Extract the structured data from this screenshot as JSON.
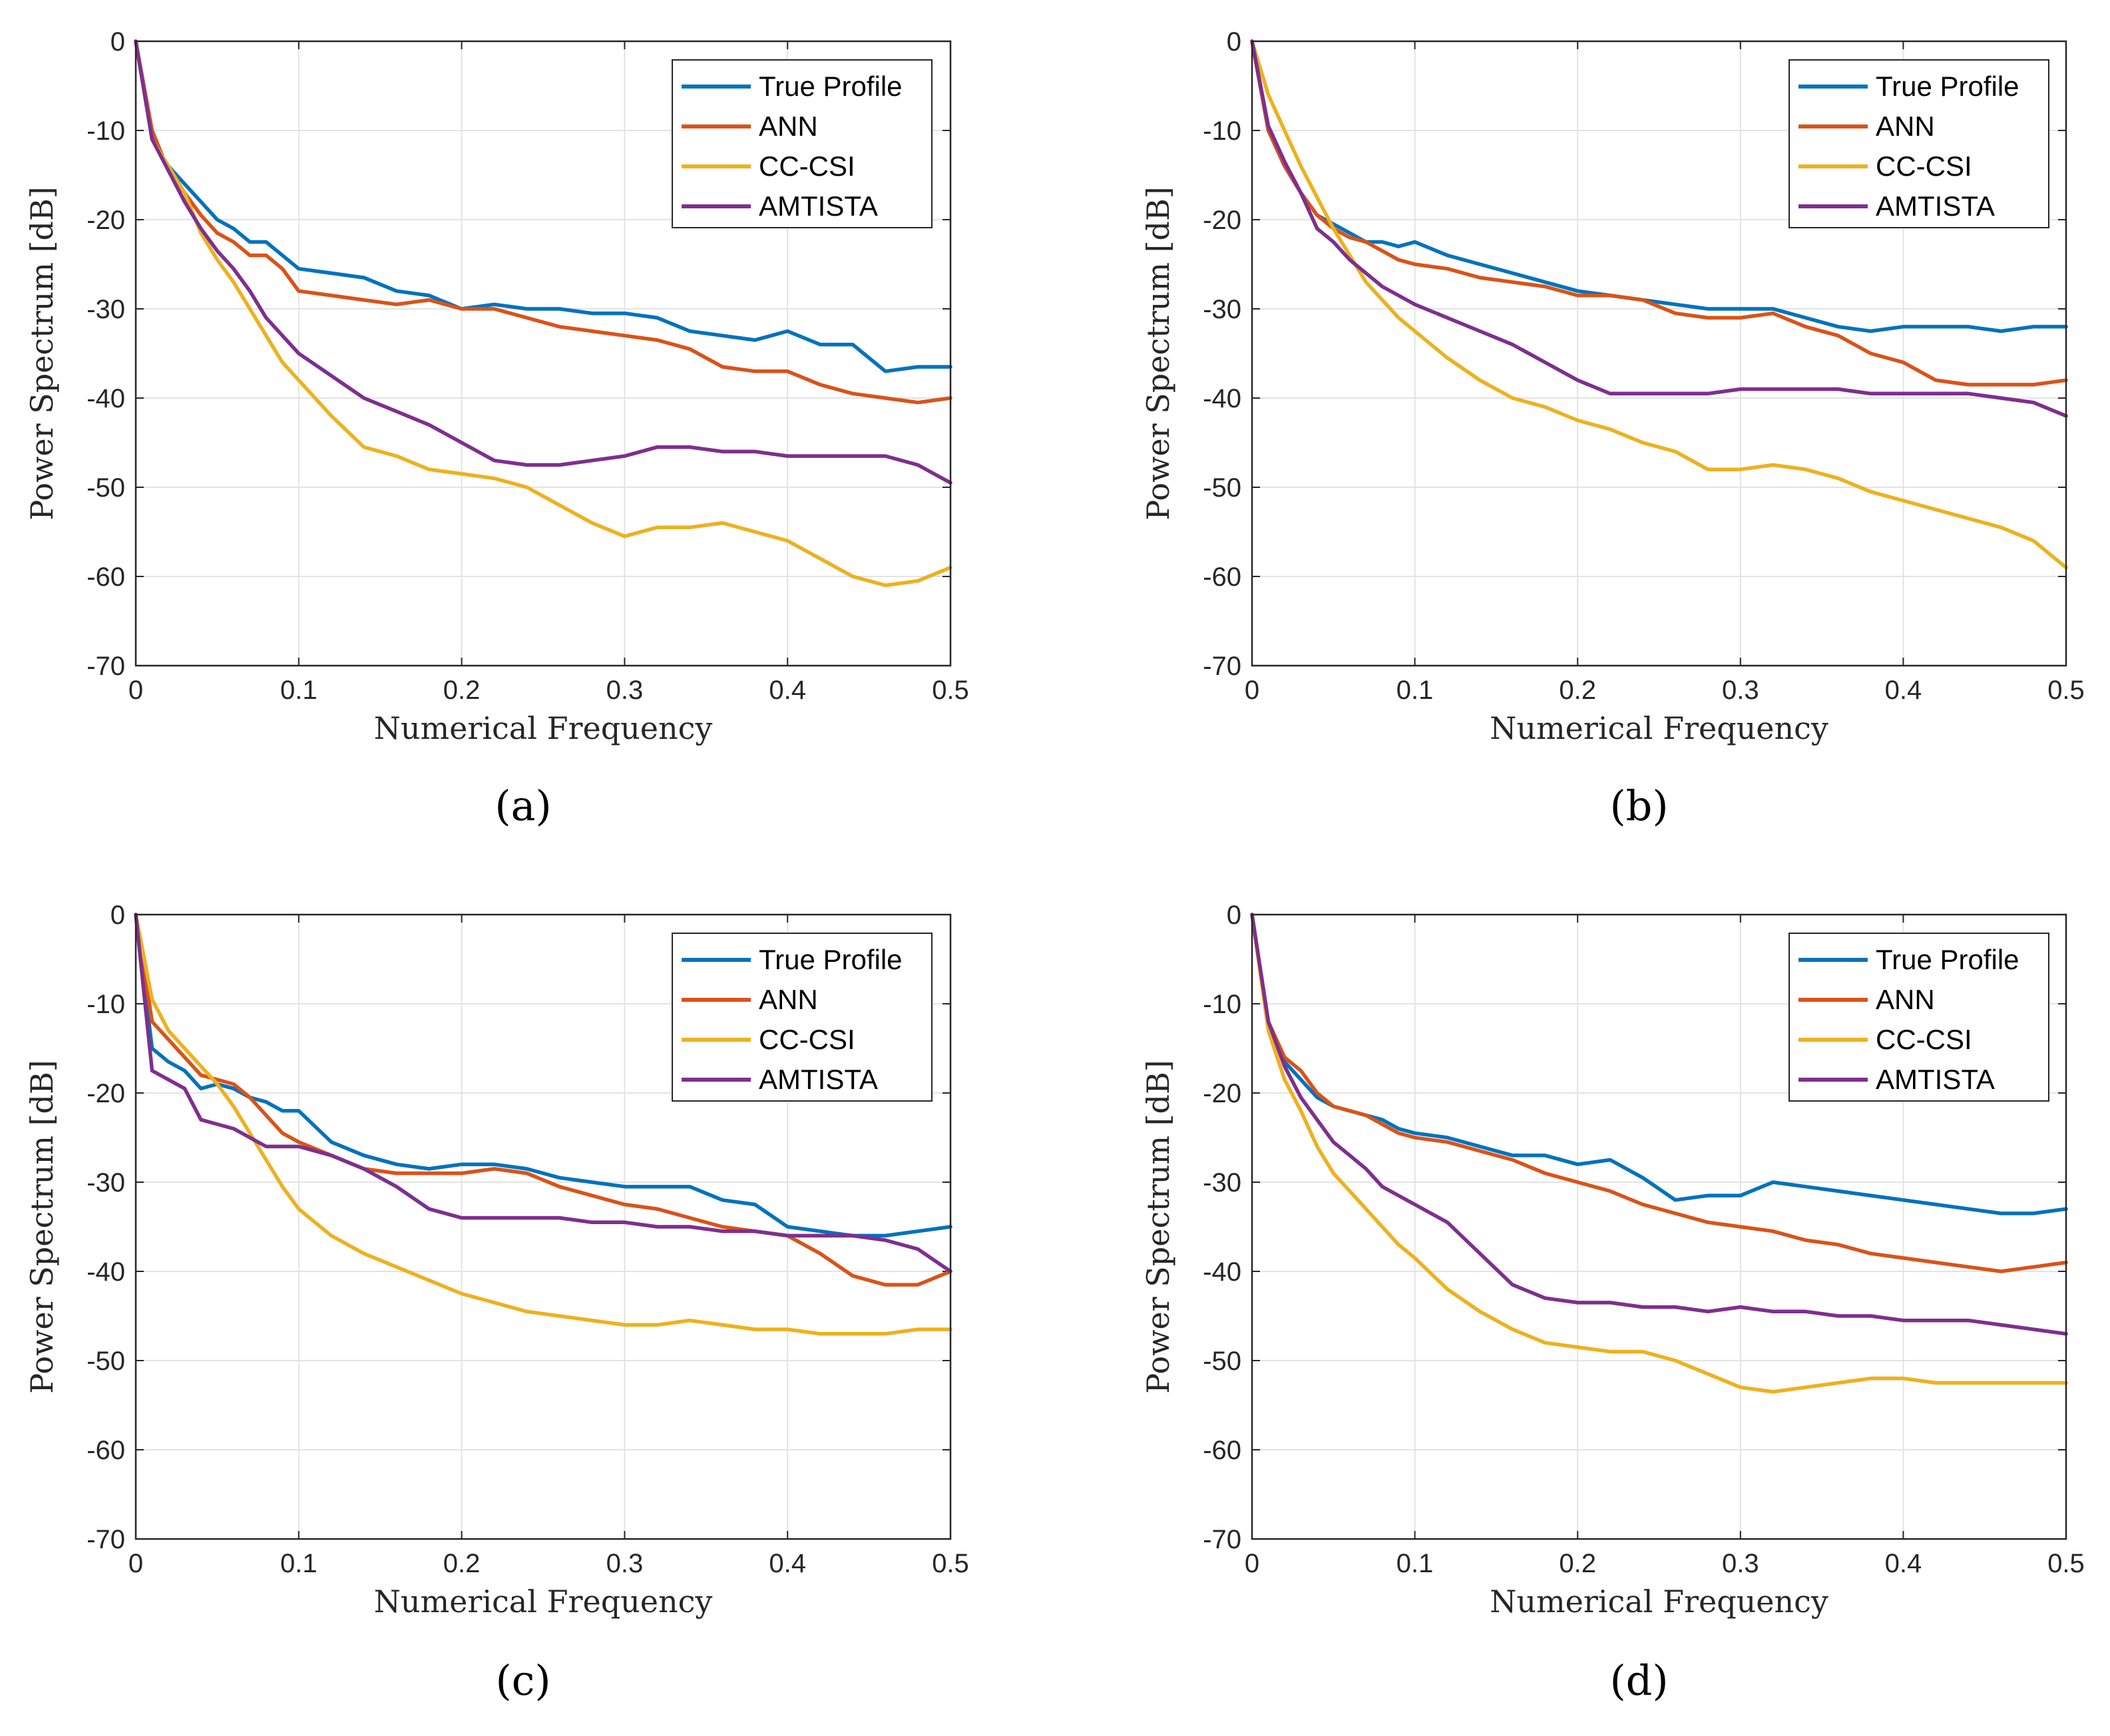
{
  "series_colors": {
    "True Profile": "#0072BD",
    "ANN": "#D95319",
    "CC-CSI": "#EDB120",
    "AMTISTA": "#7E2F8E"
  },
  "chart_data": [
    {
      "type": "line",
      "panel_label": "(a)",
      "xlabel": "Numerical Frequency",
      "ylabel": "Power Spectrum [dB]",
      "xlim": [
        0,
        0.5
      ],
      "ylim": [
        -70,
        0
      ],
      "xticks": [
        "0",
        "0.1",
        "0.2",
        "0.3",
        "0.4",
        "0.5"
      ],
      "yticks": [
        "0",
        "-10",
        "-20",
        "-30",
        "-40",
        "-50",
        "-60",
        "-70"
      ],
      "grid": true,
      "legend_position": "top-right",
      "legend": [
        "True Profile",
        "ANN",
        "CC-CSI",
        "AMTISTA"
      ],
      "x": [
        0,
        0.01,
        0.02,
        0.03,
        0.04,
        0.05,
        0.06,
        0.07,
        0.08,
        0.09,
        0.1,
        0.12,
        0.14,
        0.16,
        0.18,
        0.2,
        0.22,
        0.24,
        0.26,
        0.28,
        0.3,
        0.32,
        0.34,
        0.36,
        0.38,
        0.4,
        0.42,
        0.44,
        0.46,
        0.48,
        0.5
      ],
      "series": [
        {
          "name": "True Profile",
          "values": [
            0,
            -11,
            -14,
            -16,
            -18,
            -20,
            -21,
            -22.5,
            -22.5,
            -24,
            -25.5,
            -26,
            -26.5,
            -28,
            -28.5,
            -30,
            -29.5,
            -30,
            -30,
            -30.5,
            -30.5,
            -31,
            -32.5,
            -33,
            -33.5,
            -32.5,
            -34,
            -34,
            -37,
            -36.5,
            -36.5
          ]
        },
        {
          "name": "ANN",
          "values": [
            0,
            -10,
            -14.5,
            -17,
            -19.5,
            -21.5,
            -22.5,
            -24,
            -24,
            -25.5,
            -28,
            -28.5,
            -29,
            -29.5,
            -29,
            -30,
            -30,
            -31,
            -32,
            -32.5,
            -33,
            -33.5,
            -34.5,
            -36.5,
            -37,
            -37,
            -38.5,
            -39.5,
            -40,
            -40.5,
            -40
          ]
        },
        {
          "name": "CC-CSI",
          "values": [
            0,
            -11,
            -14,
            -17,
            -21.5,
            -24.5,
            -27,
            -30,
            -33,
            -36,
            -38,
            -42,
            -45.5,
            -46.5,
            -48,
            -48.5,
            -49,
            -50,
            -52,
            -54,
            -55.5,
            -54.5,
            -54.5,
            -54,
            -55,
            -56,
            -58,
            -60,
            -61,
            -60.5,
            -59
          ]
        },
        {
          "name": "AMTISTA",
          "values": [
            0,
            -11,
            -14.5,
            -18,
            -21,
            -23.5,
            -25.5,
            -28,
            -31,
            -33,
            -35,
            -37.5,
            -40,
            -41.5,
            -43,
            -45,
            -47,
            -47.5,
            -47.5,
            -47,
            -46.5,
            -45.5,
            -45.5,
            -46,
            -46,
            -46.5,
            -46.5,
            -46.5,
            -46.5,
            -47.5,
            -49.5
          ]
        }
      ]
    },
    {
      "type": "line",
      "panel_label": "(b)",
      "xlabel": "Numerical Frequency",
      "ylabel": "Power Spectrum [dB]",
      "xlim": [
        0,
        0.5
      ],
      "ylim": [
        -70,
        0
      ],
      "xticks": [
        "0",
        "0.1",
        "0.2",
        "0.3",
        "0.4",
        "0.5"
      ],
      "yticks": [
        "0",
        "-10",
        "-20",
        "-30",
        "-40",
        "-50",
        "-60",
        "-70"
      ],
      "grid": true,
      "legend_position": "top-right",
      "legend": [
        "True Profile",
        "ANN",
        "CC-CSI",
        "AMTISTA"
      ],
      "x": [
        0,
        0.01,
        0.02,
        0.03,
        0.04,
        0.05,
        0.06,
        0.07,
        0.08,
        0.09,
        0.1,
        0.12,
        0.14,
        0.16,
        0.18,
        0.2,
        0.22,
        0.24,
        0.26,
        0.28,
        0.3,
        0.32,
        0.34,
        0.36,
        0.38,
        0.4,
        0.42,
        0.44,
        0.46,
        0.48,
        0.5
      ],
      "series": [
        {
          "name": "True Profile",
          "values": [
            0,
            -10,
            -14,
            -17,
            -19.5,
            -20.5,
            -21.5,
            -22.5,
            -22.5,
            -23,
            -22.5,
            -24,
            -25,
            -26,
            -27,
            -28,
            -28.5,
            -29,
            -29.5,
            -30,
            -30,
            -30,
            -31,
            -32,
            -32.5,
            -32,
            -32,
            -32,
            -32.5,
            -32,
            -32
          ]
        },
        {
          "name": "ANN",
          "values": [
            0,
            -10,
            -14,
            -17,
            -19.5,
            -21,
            -22,
            -22.5,
            -23.5,
            -24.5,
            -25,
            -25.5,
            -26.5,
            -27,
            -27.5,
            -28.5,
            -28.5,
            -29,
            -30.5,
            -31,
            -31,
            -30.5,
            -32,
            -33,
            -35,
            -36,
            -38,
            -38.5,
            -38.5,
            -38.5,
            -38
          ]
        },
        {
          "name": "CC-CSI",
          "values": [
            0,
            -6,
            -10,
            -14,
            -17.5,
            -21,
            -24,
            -27,
            -29,
            -31,
            -32.5,
            -35.5,
            -38,
            -40,
            -41,
            -42.5,
            -43.5,
            -45,
            -46,
            -48,
            -48,
            -47.5,
            -48,
            -49,
            -50.5,
            -51.5,
            -52.5,
            -53.5,
            -54.5,
            -56,
            -59
          ]
        },
        {
          "name": "AMTISTA",
          "values": [
            0,
            -9.5,
            -13.5,
            -17,
            -21,
            -22.5,
            -24.5,
            -26,
            -27.5,
            -28.5,
            -29.5,
            -31,
            -32.5,
            -34,
            -36,
            -38,
            -39.5,
            -39.5,
            -39.5,
            -39.5,
            -39,
            -39,
            -39,
            -39,
            -39.5,
            -39.5,
            -39.5,
            -39.5,
            -40,
            -40.5,
            -42
          ]
        }
      ]
    },
    {
      "type": "line",
      "panel_label": "(c)",
      "xlabel": "Numerical Frequency",
      "ylabel": "Power Spectrum [dB]",
      "xlim": [
        0,
        0.5
      ],
      "ylim": [
        -70,
        0
      ],
      "xticks": [
        "0",
        "0.1",
        "0.2",
        "0.3",
        "0.4",
        "0.5"
      ],
      "yticks": [
        "0",
        "-10",
        "-20",
        "-30",
        "-40",
        "-50",
        "-60",
        "-70"
      ],
      "grid": true,
      "legend_position": "top-right",
      "legend": [
        "True Profile",
        "ANN",
        "CC-CSI",
        "AMTISTA"
      ],
      "x": [
        0,
        0.01,
        0.02,
        0.03,
        0.04,
        0.05,
        0.06,
        0.07,
        0.08,
        0.09,
        0.1,
        0.12,
        0.14,
        0.16,
        0.18,
        0.2,
        0.22,
        0.24,
        0.26,
        0.28,
        0.3,
        0.32,
        0.34,
        0.36,
        0.38,
        0.4,
        0.42,
        0.44,
        0.46,
        0.48,
        0.5
      ],
      "series": [
        {
          "name": "True Profile",
          "values": [
            0,
            -15,
            -16.5,
            -17.5,
            -19.5,
            -19,
            -19.5,
            -20.5,
            -21,
            -22,
            -22,
            -25.5,
            -27,
            -28,
            -28.5,
            -28,
            -28,
            -28.5,
            -29.5,
            -30,
            -30.5,
            -30.5,
            -30.5,
            -32,
            -32.5,
            -35,
            -35.5,
            -36,
            -36,
            -35.5,
            -35
          ]
        },
        {
          "name": "ANN",
          "values": [
            0,
            -12,
            -14,
            -16,
            -18,
            -18.5,
            -19,
            -20.5,
            -22.5,
            -24.5,
            -25.5,
            -27,
            -28.5,
            -29,
            -29,
            -29,
            -28.5,
            -29,
            -30.5,
            -31.5,
            -32.5,
            -33,
            -34,
            -35,
            -35.5,
            -36,
            -38,
            -40.5,
            -41.5,
            -41.5,
            -40
          ]
        },
        {
          "name": "CC-CSI",
          "values": [
            0,
            -9.5,
            -13,
            -15,
            -17,
            -19,
            -21.5,
            -24.5,
            -27.5,
            -30.5,
            -33,
            -36,
            -38,
            -39.5,
            -41,
            -42.5,
            -43.5,
            -44.5,
            -45,
            -45.5,
            -46,
            -46,
            -45.5,
            -46,
            -46.5,
            -46.5,
            -47,
            -47,
            -47,
            -46.5,
            -46.5
          ]
        },
        {
          "name": "AMTISTA",
          "values": [
            0,
            -17.5,
            -18.5,
            -19.5,
            -23,
            -23.5,
            -24,
            -25,
            -26,
            -26,
            -26,
            -27,
            -28.5,
            -30.5,
            -33,
            -34,
            -34,
            -34,
            -34,
            -34.5,
            -34.5,
            -35,
            -35,
            -35.5,
            -35.5,
            -36,
            -36,
            -36,
            -36.5,
            -37.5,
            -40
          ]
        }
      ]
    },
    {
      "type": "line",
      "panel_label": "(d)",
      "xlabel": "Numerical Frequency",
      "ylabel": "Power Spectrum [dB]",
      "xlim": [
        0,
        0.5
      ],
      "ylim": [
        -70,
        0
      ],
      "xticks": [
        "0",
        "0.1",
        "0.2",
        "0.3",
        "0.4",
        "0.5"
      ],
      "yticks": [
        "0",
        "-10",
        "-20",
        "-30",
        "-40",
        "-50",
        "-60",
        "-70"
      ],
      "grid": true,
      "legend_position": "top-right",
      "legend": [
        "True Profile",
        "ANN",
        "CC-CSI",
        "AMTISTA"
      ],
      "x": [
        0,
        0.01,
        0.02,
        0.03,
        0.04,
        0.05,
        0.06,
        0.07,
        0.08,
        0.09,
        0.1,
        0.12,
        0.14,
        0.16,
        0.18,
        0.2,
        0.22,
        0.24,
        0.26,
        0.28,
        0.3,
        0.32,
        0.34,
        0.36,
        0.38,
        0.4,
        0.42,
        0.44,
        0.46,
        0.48,
        0.5
      ],
      "series": [
        {
          "name": "True Profile",
          "values": [
            0,
            -12,
            -16.5,
            -18.5,
            -20.5,
            -21.5,
            -22,
            -22.5,
            -23,
            -24,
            -24.5,
            -25,
            -26,
            -27,
            -27,
            -28,
            -27.5,
            -29.5,
            -32,
            -31.5,
            -31.5,
            -30,
            -30.5,
            -31,
            -31.5,
            -32,
            -32.5,
            -33,
            -33.5,
            -33.5,
            -33
          ]
        },
        {
          "name": "ANN",
          "values": [
            0,
            -12,
            -16,
            -17.5,
            -20,
            -21.5,
            -22,
            -22.5,
            -23.5,
            -24.5,
            -25,
            -25.5,
            -26.5,
            -27.5,
            -29,
            -30,
            -31,
            -32.5,
            -33.5,
            -34.5,
            -35,
            -35.5,
            -36.5,
            -37,
            -38,
            -38.5,
            -39,
            -39.5,
            -40,
            -39.5,
            -39
          ]
        },
        {
          "name": "CC-CSI",
          "values": [
            0,
            -13,
            -18.5,
            -22,
            -26,
            -29,
            -31,
            -33,
            -35,
            -37,
            -38.5,
            -42,
            -44.5,
            -46.5,
            -48,
            -48.5,
            -49,
            -49,
            -50,
            -51.5,
            -53,
            -53.5,
            -53,
            -52.5,
            -52,
            -52,
            -52.5,
            -52.5,
            -52.5,
            -52.5,
            -52.5
          ]
        },
        {
          "name": "AMTISTA",
          "values": [
            0,
            -12,
            -17,
            -20.5,
            -23,
            -25.5,
            -27,
            -28.5,
            -30.5,
            -31.5,
            -32.5,
            -34.5,
            -38,
            -41.5,
            -43,
            -43.5,
            -43.5,
            -44,
            -44,
            -44.5,
            -44,
            -44.5,
            -44.5,
            -45,
            -45,
            -45.5,
            -45.5,
            -45.5,
            -46,
            -46.5,
            -47
          ]
        }
      ]
    }
  ]
}
